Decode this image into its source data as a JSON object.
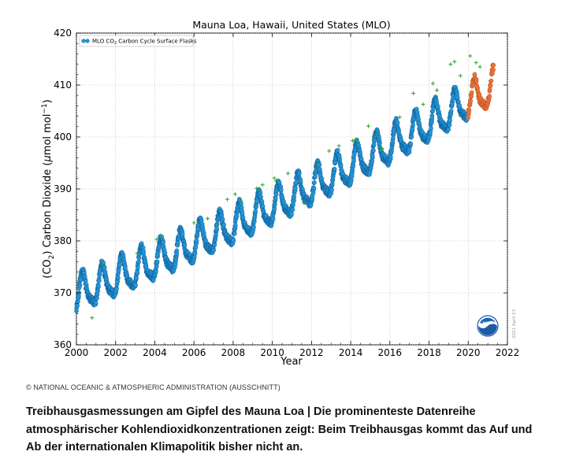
{
  "chart_data": {
    "type": "scatter",
    "title": "Mauna Loa, Hawaii, United States (MLO)",
    "xlabel": "Year",
    "ylabel_parts": [
      "(CO",
      "2",
      ") Carbon Dioxide (",
      "μ",
      "mol mol",
      "−1",
      ")"
    ],
    "xlim": [
      2000,
      2022
    ],
    "ylim": [
      360,
      420
    ],
    "xticks": [
      2000,
      2002,
      2004,
      2006,
      2008,
      2010,
      2012,
      2014,
      2016,
      2018,
      2020,
      2022
    ],
    "yticks": [
      360,
      370,
      380,
      390,
      400,
      410,
      420
    ],
    "legend": {
      "position": "upper-left",
      "label_parts": [
        "MLO CO",
        "2",
        " Carbon Cycle Surface Flasks"
      ]
    },
    "stamp": "2021 April 23",
    "trend": {
      "start_year": 2000,
      "start_ppm": 369.6,
      "growth_ppm_per_year": [
        1.5,
        2.25,
        0.018
      ],
      "seasonal_amplitude_ppm": 3.2,
      "seasonal_peak_month": 5
    },
    "series": [
      {
        "key": "flasks",
        "color": "#2596d6",
        "edge": "#0b4f8a",
        "x_range": [
          2000.0,
          2019.95
        ],
        "marker": "circle"
      },
      {
        "key": "recent",
        "color": "#e8743b",
        "edge": "#b04714",
        "x_range": [
          2020.0,
          2021.3
        ],
        "marker": "circle"
      },
      {
        "key": "flagged",
        "color": "#2ca02c",
        "marker": "plus",
        "points": [
          [
            2000.8,
            365.2
          ],
          [
            2001.3,
            375.5
          ],
          [
            2003.1,
            377.6
          ],
          [
            2004.1,
            380.3
          ],
          [
            2004.3,
            381.1
          ],
          [
            2006.0,
            383.5
          ],
          [
            2006.7,
            384.3
          ],
          [
            2007.2,
            383.3
          ],
          [
            2007.7,
            388.0
          ],
          [
            2008.1,
            389.0
          ],
          [
            2008.4,
            387.6
          ],
          [
            2009.2,
            390.1
          ],
          [
            2009.5,
            390.8
          ],
          [
            2010.1,
            392.1
          ],
          [
            2010.2,
            391.6
          ],
          [
            2010.8,
            393.0
          ],
          [
            2011.6,
            387.3
          ],
          [
            2012.3,
            394.8
          ],
          [
            2012.9,
            397.3
          ],
          [
            2013.4,
            398.3
          ],
          [
            2014.1,
            399.3
          ],
          [
            2014.3,
            399.5
          ],
          [
            2014.9,
            402.1
          ],
          [
            2015.3,
            400.5
          ],
          [
            2015.5,
            398.0
          ],
          [
            2015.6,
            397.8
          ],
          [
            2016.5,
            403.8
          ],
          [
            2017.2,
            408.4
          ],
          [
            2017.7,
            406.3
          ],
          [
            2018.2,
            410.3
          ],
          [
            2018.4,
            409.0
          ],
          [
            2019.1,
            414.0
          ],
          [
            2019.3,
            414.5
          ],
          [
            2019.6,
            411.8
          ],
          [
            2020.1,
            415.6
          ],
          [
            2020.4,
            414.3
          ],
          [
            2020.6,
            413.5
          ]
        ]
      }
    ]
  },
  "credit": "© NATIONAL OCEANIC & ATMOSPHERIC ADMINISTRATION (AUSSCHNITT)",
  "caption": "Treibhausgasmessungen am Gipfel des Mauna Loa | Die prominenteste Datenreihe atmosphärischer Kohlendioxidkonzentrationen zeigt: Beim Treibhausgas kommt das Auf und Ab der internationalen Klimapolitik bisher nicht an."
}
